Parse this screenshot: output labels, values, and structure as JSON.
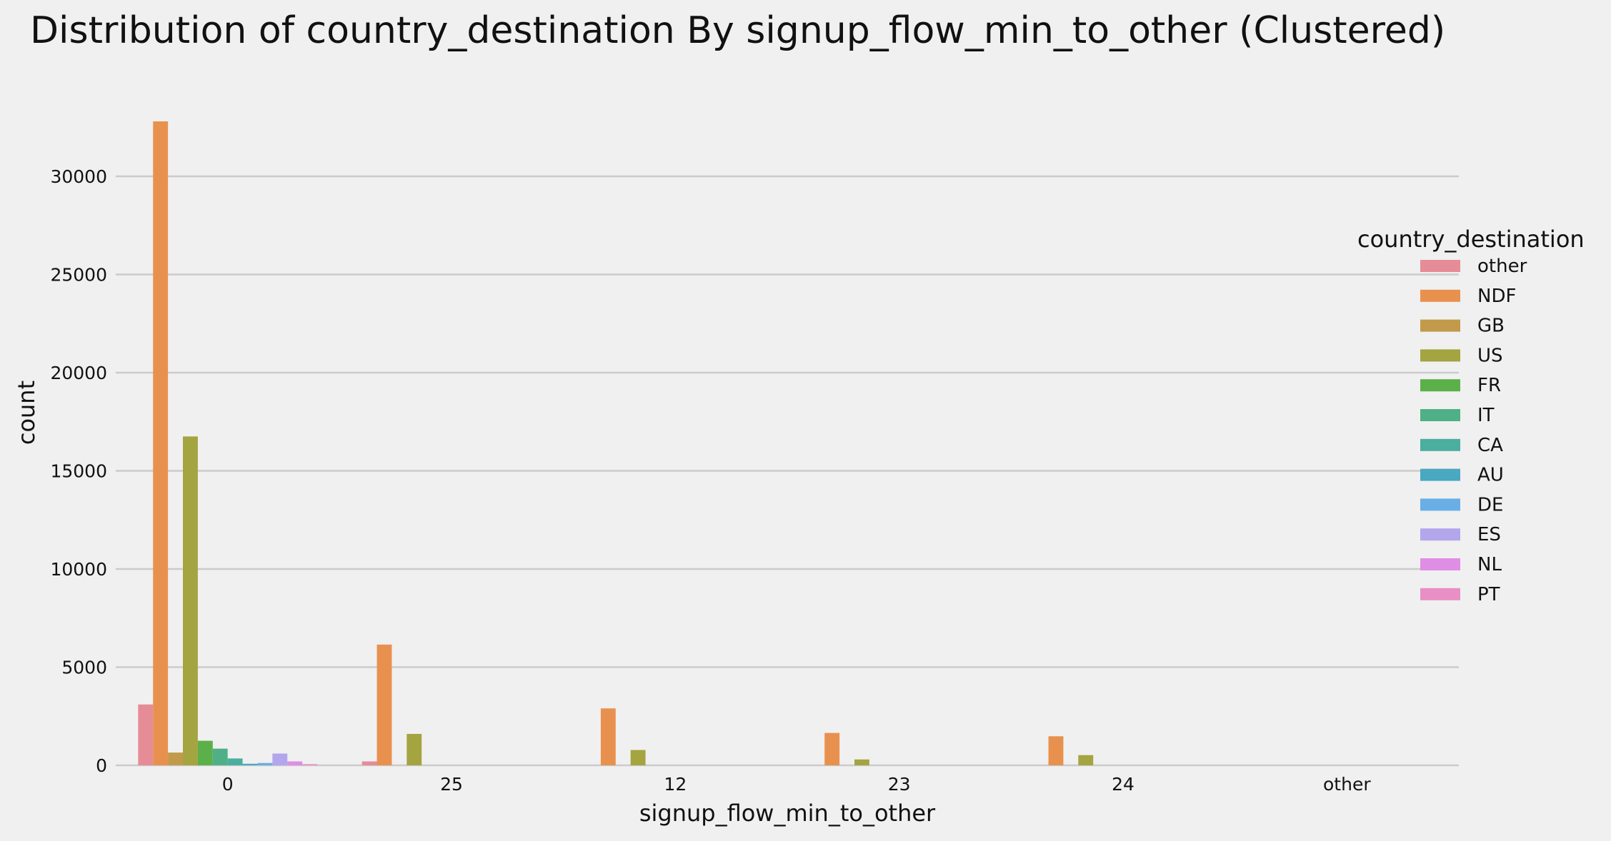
{
  "chart_data": {
    "type": "bar",
    "title": "Distribution of country_destination By signup_flow_min_to_other (Clustered)",
    "xlabel": "signup_flow_min_to_other",
    "ylabel": "count",
    "categories": [
      "0",
      "25",
      "12",
      "23",
      "24",
      "other"
    ],
    "y_ticks": [
      0,
      5000,
      10000,
      15000,
      20000,
      25000,
      30000
    ],
    "ylim": [
      0,
      34400
    ],
    "grid": "horizontal",
    "legend_title": "country_destination",
    "legend_position": "right",
    "series": [
      {
        "name": "other",
        "color": "#e68c96",
        "values": [
          3100,
          200,
          0,
          0,
          0,
          0
        ]
      },
      {
        "name": "NDF",
        "color": "#e8914f",
        "values": [
          32800,
          6150,
          2900,
          1650,
          1480,
          0
        ]
      },
      {
        "name": "GB",
        "color": "#c29a4b",
        "values": [
          650,
          0,
          0,
          0,
          0,
          0
        ]
      },
      {
        "name": "US",
        "color": "#a4a441",
        "values": [
          16750,
          1600,
          780,
          300,
          520,
          0
        ]
      },
      {
        "name": "FR",
        "color": "#5cb04a",
        "values": [
          1250,
          0,
          0,
          0,
          0,
          0
        ]
      },
      {
        "name": "IT",
        "color": "#4fb088",
        "values": [
          850,
          0,
          0,
          0,
          0,
          0
        ]
      },
      {
        "name": "CA",
        "color": "#4bae9f",
        "values": [
          350,
          0,
          0,
          0,
          0,
          0
        ]
      },
      {
        "name": "AU",
        "color": "#4aa8c0",
        "values": [
          80,
          0,
          0,
          0,
          0,
          0
        ]
      },
      {
        "name": "DE",
        "color": "#6aaee6",
        "values": [
          120,
          0,
          0,
          0,
          0,
          0
        ]
      },
      {
        "name": "ES",
        "color": "#b3a6ec",
        "values": [
          600,
          0,
          0,
          0,
          0,
          0
        ]
      },
      {
        "name": "NL",
        "color": "#df8ee6",
        "values": [
          200,
          0,
          0,
          0,
          0,
          0
        ]
      },
      {
        "name": "PT",
        "color": "#e88fc4",
        "values": [
          60,
          0,
          0,
          0,
          0,
          0
        ]
      }
    ]
  }
}
